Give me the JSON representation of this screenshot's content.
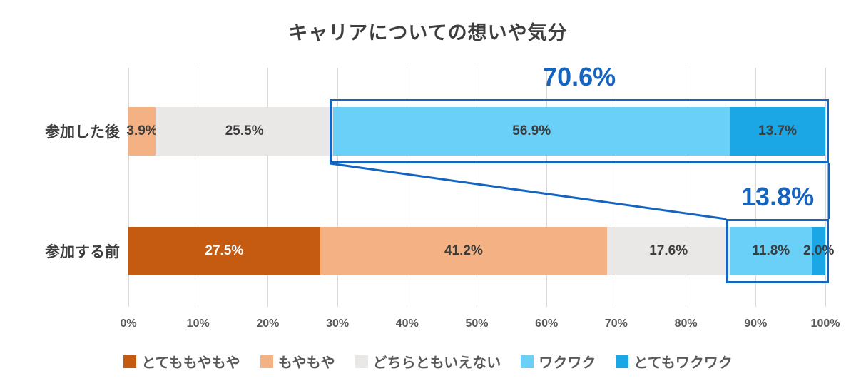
{
  "title": "キャリアについての想いや気分",
  "accent_color": "#1565c0",
  "chart_data": {
    "type": "bar",
    "orientation": "horizontal",
    "stacked": true,
    "title": "キャリアについての想いや気分",
    "categories": [
      "参加した後",
      "参加する前"
    ],
    "series": [
      {
        "name": "とてももやもや",
        "color": "#c55a11",
        "label_color": "#ffffff",
        "values": [
          0,
          27.5
        ]
      },
      {
        "name": "もやもや",
        "color": "#f4b183",
        "label_color": "#3d3d3d",
        "values": [
          3.9,
          41.2
        ]
      },
      {
        "name": "どちらともいえない",
        "color": "#eae7e7",
        "label_color": "#3d3d3d",
        "values": [
          25.5,
          17.6
        ]
      },
      {
        "name": "ワクワク",
        "color": "#6bd0f7",
        "label_color": "#3d3d3d",
        "values": [
          56.9,
          11.8
        ]
      },
      {
        "name": "とてもワクワク",
        "color": "#1ba6e6",
        "label_color": "#3d3d3d",
        "values": [
          13.7,
          2.0
        ]
      }
    ],
    "xlim": [
      0,
      100
    ],
    "x_ticks": [
      "0%",
      "10%",
      "20%",
      "30%",
      "40%",
      "50%",
      "60%",
      "70%",
      "80%",
      "90%",
      "100%"
    ],
    "grid": true,
    "legend_position": "bottom",
    "annotations": [
      {
        "label": "70.6%",
        "category": "参加した後",
        "series": [
          "ワクワク",
          "とてもワクワク"
        ]
      },
      {
        "label": "13.8%",
        "category": "参加する前",
        "series": [
          "ワクワク",
          "とてもワクワク"
        ]
      }
    ]
  }
}
